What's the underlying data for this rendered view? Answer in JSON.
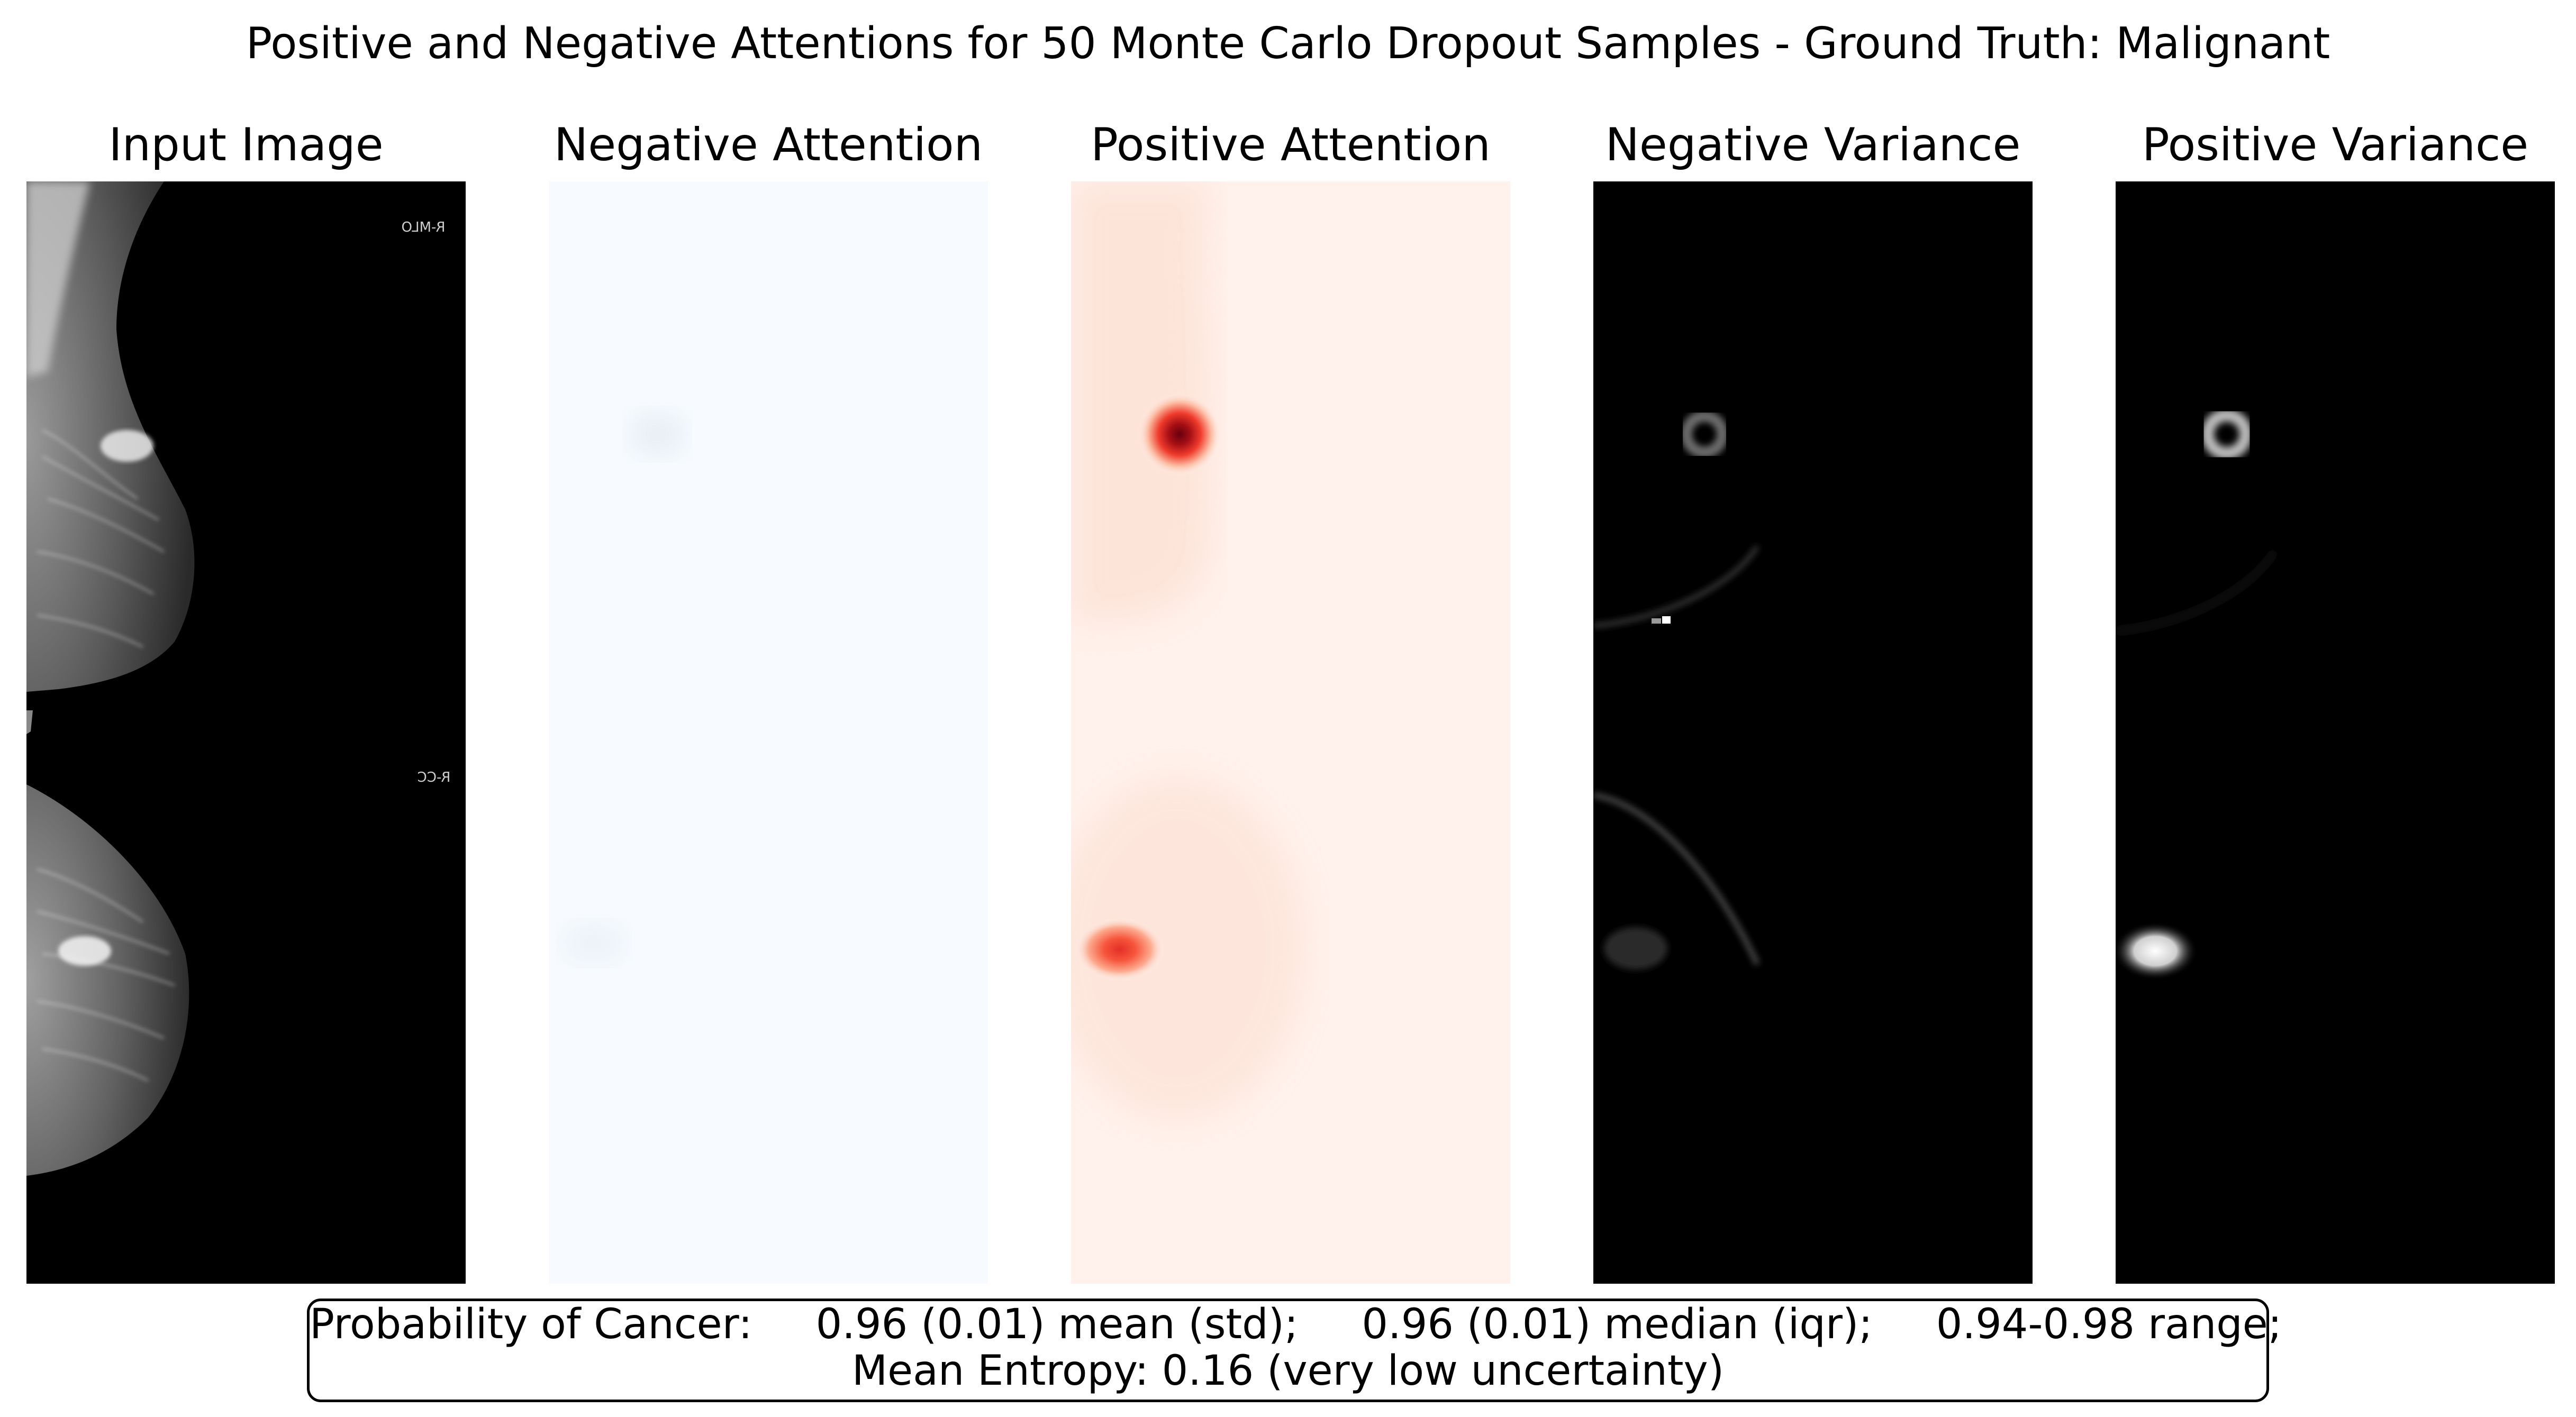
{
  "figure": {
    "title": "Positive and Negative Attentions for 50 Monte Carlo Dropout Samples - Ground Truth: Malignant"
  },
  "panels": [
    {
      "title": "Input Image",
      "colormap": "gray",
      "view_labels": [
        "R-MLO",
        "R-CC"
      ]
    },
    {
      "title": "Negative Attention",
      "colormap": "Blues"
    },
    {
      "title": "Positive Attention",
      "colormap": "Reds"
    },
    {
      "title": "Negative Variance",
      "colormap": "gray"
    },
    {
      "title": "Positive Variance",
      "colormap": "gray"
    }
  ],
  "summary": {
    "probability_label": "Probability of Cancer:",
    "mean_std": "0.96 (0.01) mean (std);",
    "median_iqr": "0.96 (0.01) median (iqr);",
    "range": "0.94-0.98 range;",
    "entropy": "Mean Entropy: 0.16 (very low uncertainty)"
  },
  "chart_data": {
    "type": "heatmap",
    "title": "Positive and Negative Attentions for 50 Monte Carlo Dropout Samples - Ground Truth: Malignant",
    "subplots": [
      "Input Image",
      "Negative Attention",
      "Positive Attention",
      "Negative Variance",
      "Positive Variance"
    ],
    "colors": {
      "blues_low": "#f7fbff",
      "reds_low": "#fff5f0",
      "reds_high": "#67000d",
      "gray_low": "#000000",
      "gray_high": "#ffffff"
    },
    "probability_of_cancer": {
      "mean": 0.96,
      "std": 0.01,
      "median": 0.96,
      "iqr": 0.01,
      "min": 0.94,
      "max": 0.98
    },
    "mean_entropy": 0.16,
    "num_samples": 50,
    "ground_truth": "Malignant"
  }
}
